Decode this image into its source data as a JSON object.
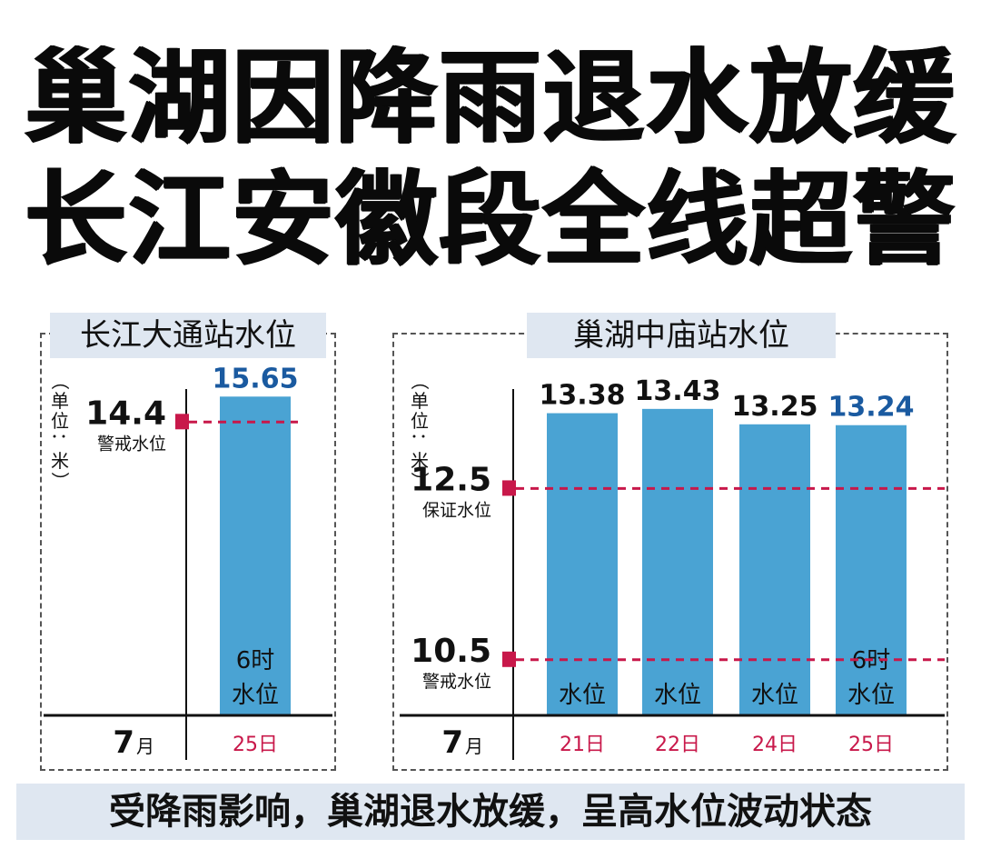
{
  "headline": {
    "line1": "巢湖因降雨退水放缓",
    "line2": "长江安徽段全线超警"
  },
  "footer": "受降雨影响，巢湖退水放缓，呈高水位波动状态",
  "colors": {
    "bar": "#4aa3d3",
    "threshold": "#c8184a",
    "date": "#c8184a",
    "latest_label": "#1a5aa0",
    "panel_title_bg": "#dfe7f1"
  },
  "chart_data": [
    {
      "type": "bar",
      "title": "长江大通站水位",
      "unit_label": "（单位：米）",
      "month_label": "7",
      "month_suffix": "月",
      "categories": [
        "25日"
      ],
      "values": [
        15.65
      ],
      "value_labels": [
        "15.65"
      ],
      "bar_texts": [
        [
          "6时",
          "水位"
        ]
      ],
      "latest_index": 0,
      "thresholds": [
        {
          "value": 14.4,
          "label": "14.4",
          "name": "警戒水位"
        }
      ],
      "ylim": [
        0,
        16.6
      ]
    },
    {
      "type": "bar",
      "title": "巢湖中庙站水位",
      "unit_label": "（单位：米）",
      "month_label": "7",
      "month_suffix": "月",
      "categories": [
        "21日",
        "22日",
        "24日",
        "25日"
      ],
      "values": [
        13.38,
        13.43,
        13.25,
        13.24
      ],
      "value_labels": [
        "13.38",
        "13.43",
        "13.25",
        "13.24"
      ],
      "bar_texts": [
        [
          "水位"
        ],
        [
          "水位"
        ],
        [
          "水位"
        ],
        [
          "6时",
          "水位"
        ]
      ],
      "latest_index": 3,
      "thresholds": [
        {
          "value": 12.5,
          "label": "12.5",
          "name": "保证水位"
        },
        {
          "value": 10.5,
          "label": "10.5",
          "name": "警戒水位"
        }
      ],
      "ylim": [
        9.85,
        13.8
      ]
    }
  ]
}
